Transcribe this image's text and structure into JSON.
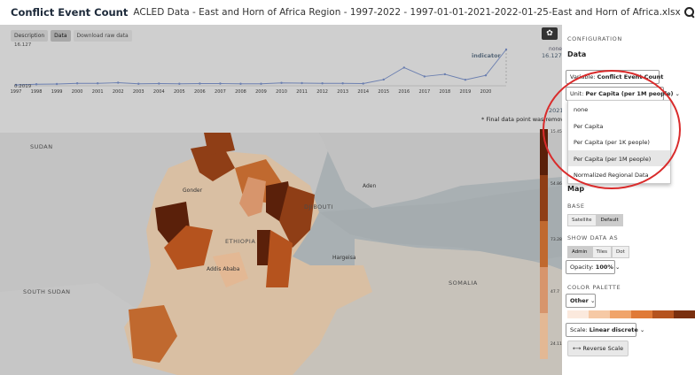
{
  "header": {
    "title": "Conflict Event Count",
    "subtitle": "ACLED Data - East and Horn of Africa Region - 1997-2022 - 1997-01-01-2021-2022-01-25-East and Horn of Africa.xlsx"
  },
  "tabs": [
    {
      "label": "Description"
    },
    {
      "label": "Data"
    },
    {
      "label": "Download raw data"
    }
  ],
  "chart": {
    "ytop_label": "16.127",
    "ybot_label": "0.2019",
    "right_top_label": "none",
    "right_value_label": "16.127",
    "right_year_label": "2021",
    "indicator_label": "indicator",
    "footnote": "* Final data point was removed"
  },
  "chart_data": {
    "type": "line",
    "x": [
      1997,
      1998,
      1999,
      2000,
      2001,
      2002,
      2003,
      2004,
      2005,
      2006,
      2007,
      2008,
      2009,
      2010,
      2011,
      2012,
      2013,
      2014,
      2015,
      2016,
      2017,
      2018,
      2019,
      2020,
      2021
    ],
    "x_labels": [
      "1997",
      "1998",
      "1999",
      "2000",
      "2001",
      "2002",
      "2003",
      "2004",
      "2005",
      "2006",
      "2007",
      "2008",
      "2009",
      "2010",
      "2011",
      "2012",
      "2013",
      "2014",
      "2015",
      "2016",
      "2017",
      "2018",
      "2019",
      "2020"
    ],
    "values": [
      0.2,
      0.5,
      0.6,
      0.9,
      0.9,
      1.2,
      0.7,
      0.8,
      0.7,
      0.8,
      0.8,
      0.7,
      0.7,
      1.1,
      1.0,
      0.9,
      0.9,
      0.8,
      2.6,
      8.0,
      4.0,
      5.0,
      2.5,
      4.5,
      16.127
    ],
    "ylim": [
      0.2019,
      16.127
    ]
  },
  "map": {
    "labels": {
      "sudan": "SUDAN",
      "ethiopia": "ETHIOPIA",
      "djibouti": "DJIBOUTI",
      "somalia": "SOMALIA",
      "south_sudan": "SOUTH SUDAN"
    },
    "cities": {
      "gonder": "Gonder",
      "aden": "Aden",
      "addis": "Addis Ababa",
      "hargeisa": "Hargeisa"
    }
  },
  "legend": {
    "labels": [
      "15.45",
      "54.864",
      "73.282",
      "47.7",
      "24.118"
    ],
    "colors": [
      "#5a200a",
      "#8f3e16",
      "#c0692f",
      "#d7956c",
      "#e3b894"
    ]
  },
  "config": {
    "heading": "CONFIGURATION",
    "data_section": "Data",
    "variable_prefix": "Variable: ",
    "variable_value": "Conflict Event Count",
    "unit_prefix": "Unit: ",
    "unit_value": "Per Capita (per 1M people)",
    "unit_options": [
      "none",
      "Per Capita",
      "Per Capita (per 1K people)",
      "Per Capita (per 1M people)",
      "Normalized Regional Data"
    ],
    "map_section": "Map",
    "base_label": "BASE",
    "base_options": [
      "Satellite",
      "Default"
    ],
    "show_as_label": "SHOW DATA AS",
    "show_as_options": [
      "Admin",
      "Tiles",
      "Dot"
    ],
    "opacity_prefix": "Opacity: ",
    "opacity_value": "100%",
    "palette_label": "COLOR PALETTE",
    "palette_value": "Other",
    "palette_colors": [
      "#fbe9dd",
      "#f6c9a5",
      "#f0a46a",
      "#e07a37",
      "#b5531e",
      "#7a2f0e"
    ],
    "scale_prefix": "Scale: ",
    "scale_value": "Linear discrete",
    "reverse_label": "Reverse Scale"
  }
}
